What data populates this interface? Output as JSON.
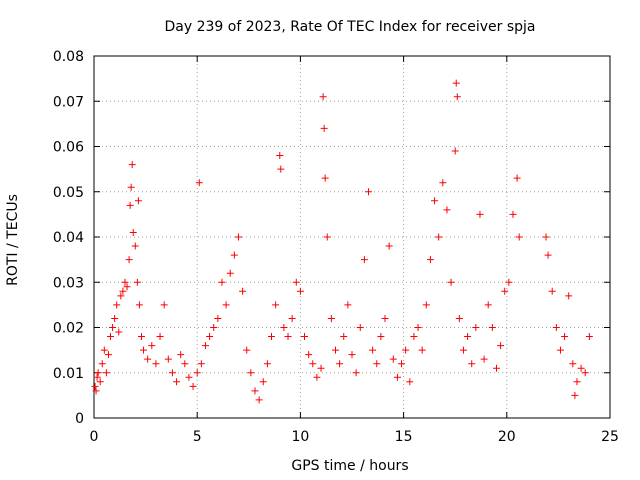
{
  "chart_data": {
    "type": "scatter",
    "title": "Day 239 of 2023, Rate Of TEC Index for receiver spja",
    "xlabel": "GPS time / hours",
    "ylabel": "ROTI / TECUs",
    "xlim": [
      0,
      25
    ],
    "ylim": [
      0,
      0.08
    ],
    "x_ticks": [
      "0",
      "5",
      "10",
      "15",
      "20",
      "25"
    ],
    "y_ticks": [
      "0",
      "0.01",
      "0.02",
      "0.03",
      "0.04",
      "0.05",
      "0.06",
      "0.07",
      "0.08"
    ],
    "grid": true,
    "marker": "+",
    "series": [
      {
        "color": "#ff0000",
        "points": [
          [
            0.05,
            0.007
          ],
          [
            0.1,
            0.006
          ],
          [
            0.15,
            0.009
          ],
          [
            0.2,
            0.01
          ],
          [
            0.3,
            0.008
          ],
          [
            0.4,
            0.012
          ],
          [
            0.5,
            0.015
          ],
          [
            0.6,
            0.01
          ],
          [
            0.7,
            0.014
          ],
          [
            0.8,
            0.018
          ],
          [
            0.9,
            0.02
          ],
          [
            1.0,
            0.022
          ],
          [
            1.1,
            0.025
          ],
          [
            1.2,
            0.019
          ],
          [
            1.3,
            0.027
          ],
          [
            1.4,
            0.028
          ],
          [
            1.5,
            0.03
          ],
          [
            1.6,
            0.029
          ],
          [
            1.7,
            0.035
          ],
          [
            1.75,
            0.047
          ],
          [
            1.8,
            0.051
          ],
          [
            1.85,
            0.056
          ],
          [
            1.9,
            0.041
          ],
          [
            2.0,
            0.038
          ],
          [
            2.1,
            0.03
          ],
          [
            2.15,
            0.048
          ],
          [
            2.2,
            0.025
          ],
          [
            2.3,
            0.018
          ],
          [
            2.4,
            0.015
          ],
          [
            2.6,
            0.013
          ],
          [
            2.8,
            0.016
          ],
          [
            3.0,
            0.012
          ],
          [
            3.2,
            0.018
          ],
          [
            3.4,
            0.025
          ],
          [
            3.6,
            0.013
          ],
          [
            3.8,
            0.01
          ],
          [
            4.0,
            0.008
          ],
          [
            4.2,
            0.014
          ],
          [
            4.4,
            0.012
          ],
          [
            4.6,
            0.009
          ],
          [
            4.8,
            0.007
          ],
          [
            5.0,
            0.01
          ],
          [
            5.1,
            0.052
          ],
          [
            5.2,
            0.012
          ],
          [
            5.4,
            0.016
          ],
          [
            5.6,
            0.018
          ],
          [
            5.8,
            0.02
          ],
          [
            6.0,
            0.022
          ],
          [
            6.2,
            0.03
          ],
          [
            6.4,
            0.025
          ],
          [
            6.6,
            0.032
          ],
          [
            6.8,
            0.036
          ],
          [
            7.0,
            0.04
          ],
          [
            7.2,
            0.028
          ],
          [
            7.4,
            0.015
          ],
          [
            7.6,
            0.01
          ],
          [
            7.8,
            0.006
          ],
          [
            8.0,
            0.004
          ],
          [
            8.2,
            0.008
          ],
          [
            8.4,
            0.012
          ],
          [
            8.6,
            0.018
          ],
          [
            8.8,
            0.025
          ],
          [
            9.0,
            0.058
          ],
          [
            9.05,
            0.055
          ],
          [
            9.2,
            0.02
          ],
          [
            9.4,
            0.018
          ],
          [
            9.6,
            0.022
          ],
          [
            9.8,
            0.03
          ],
          [
            10.0,
            0.028
          ],
          [
            10.2,
            0.018
          ],
          [
            10.4,
            0.014
          ],
          [
            10.6,
            0.012
          ],
          [
            10.8,
            0.009
          ],
          [
            11.0,
            0.011
          ],
          [
            11.1,
            0.071
          ],
          [
            11.15,
            0.064
          ],
          [
            11.2,
            0.053
          ],
          [
            11.3,
            0.04
          ],
          [
            11.5,
            0.022
          ],
          [
            11.7,
            0.015
          ],
          [
            11.9,
            0.012
          ],
          [
            12.1,
            0.018
          ],
          [
            12.3,
            0.025
          ],
          [
            12.5,
            0.014
          ],
          [
            12.7,
            0.01
          ],
          [
            12.9,
            0.02
          ],
          [
            13.1,
            0.035
          ],
          [
            13.3,
            0.05
          ],
          [
            13.5,
            0.015
          ],
          [
            13.7,
            0.012
          ],
          [
            13.9,
            0.018
          ],
          [
            14.1,
            0.022
          ],
          [
            14.3,
            0.038
          ],
          [
            14.5,
            0.013
          ],
          [
            14.7,
            0.009
          ],
          [
            14.9,
            0.012
          ],
          [
            15.1,
            0.015
          ],
          [
            15.3,
            0.008
          ],
          [
            15.5,
            0.018
          ],
          [
            15.7,
            0.02
          ],
          [
            15.9,
            0.015
          ],
          [
            16.1,
            0.025
          ],
          [
            16.3,
            0.035
          ],
          [
            16.5,
            0.048
          ],
          [
            16.7,
            0.04
          ],
          [
            16.9,
            0.052
          ],
          [
            17.1,
            0.046
          ],
          [
            17.3,
            0.03
          ],
          [
            17.5,
            0.059
          ],
          [
            17.55,
            0.074
          ],
          [
            17.6,
            0.071
          ],
          [
            17.7,
            0.022
          ],
          [
            17.9,
            0.015
          ],
          [
            18.1,
            0.018
          ],
          [
            18.3,
            0.012
          ],
          [
            18.5,
            0.02
          ],
          [
            18.7,
            0.045
          ],
          [
            18.9,
            0.013
          ],
          [
            19.1,
            0.025
          ],
          [
            19.3,
            0.02
          ],
          [
            19.5,
            0.011
          ],
          [
            19.7,
            0.016
          ],
          [
            19.9,
            0.028
          ],
          [
            20.1,
            0.03
          ],
          [
            20.3,
            0.045
          ],
          [
            20.5,
            0.053
          ],
          [
            20.6,
            0.04
          ],
          [
            21.9,
            0.04
          ],
          [
            22.0,
            0.036
          ],
          [
            22.2,
            0.028
          ],
          [
            22.4,
            0.02
          ],
          [
            22.6,
            0.015
          ],
          [
            22.8,
            0.018
          ],
          [
            23.0,
            0.027
          ],
          [
            23.2,
            0.012
          ],
          [
            23.4,
            0.008
          ],
          [
            23.6,
            0.011
          ],
          [
            23.8,
            0.01
          ],
          [
            24.0,
            0.018
          ],
          [
            23.3,
            0.005
          ]
        ]
      }
    ]
  }
}
